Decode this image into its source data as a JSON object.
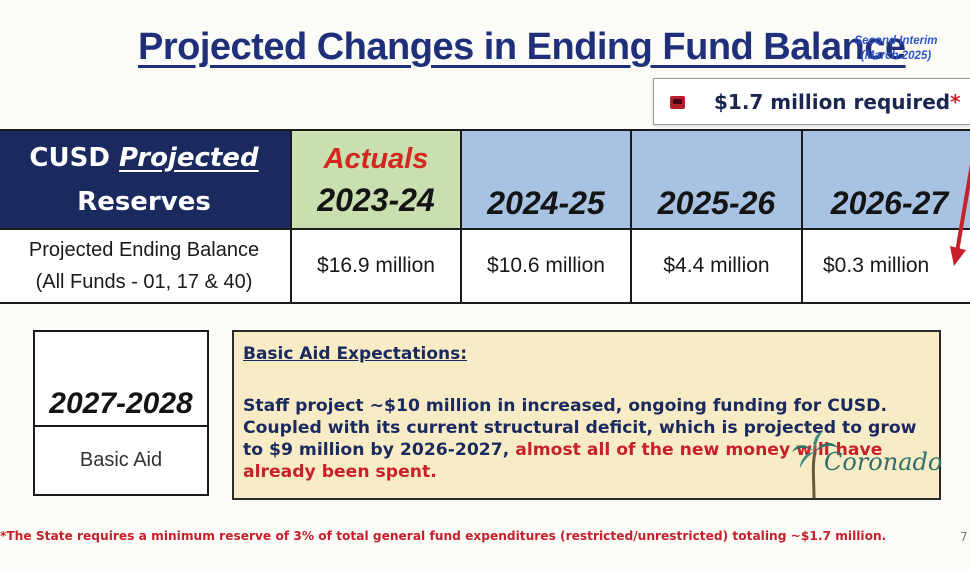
{
  "title": "Projected Changes in Ending Fund Balance",
  "interim_label": {
    "line1": "Second Interim",
    "line2": "(March 2025)"
  },
  "required_note": {
    "text": "$1.7 million required",
    "marker": "*"
  },
  "table": {
    "header_label": {
      "line1_prefix": "CUSD ",
      "line1_emphasis": "Projected",
      "line2": "Reserves"
    },
    "actuals_label": "Actuals",
    "years": [
      "2023-24",
      "2024-25",
      "2025-26",
      "2026-27"
    ],
    "row_label": {
      "line1": "Projected Ending Balance",
      "line2": "(All Funds - 01, 17 & 40)"
    },
    "values": [
      "$16.9 million",
      "$10.6 million",
      "$4.4 million",
      "$0.3 million"
    ]
  },
  "future_year": {
    "year": "2027-2028",
    "status": "Basic Aid"
  },
  "basic_aid": {
    "heading": "Basic Aid Expectations:",
    "body_plain": "Staff project ~$10 million in increased, ongoing funding for CUSD. Coupled with its current structural deficit, which is projected to grow to $9 million by 2026-2027, ",
    "body_highlight": "almost all of the new money will have already been spent."
  },
  "logo_text": "Coronado",
  "footnote": "*The State requires a minimum reserve of 3% of total general fund expenditures (restricted/unrestricted) totaling ~$1.7 million.",
  "page_number": "7",
  "colors": {
    "navy": "#1b2a5e",
    "title_blue": "#1f2f7a",
    "actuals_green": "#c9dfb0",
    "year_blue": "#a7c2e3",
    "alert_red": "#c8202a",
    "note_bg": "#f8ecc6"
  }
}
